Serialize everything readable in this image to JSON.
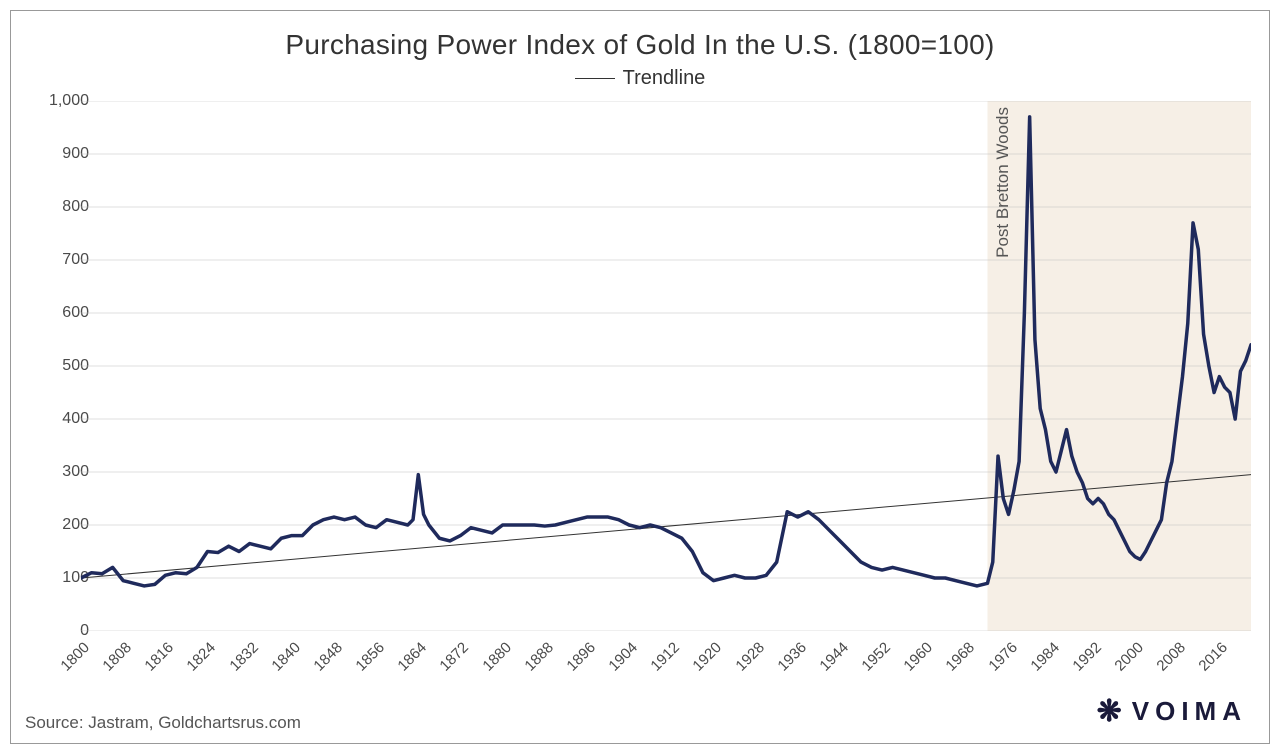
{
  "title": "Purchasing Power Index of Gold In the U.S. (1800=100)",
  "legend_label": "Trendline",
  "source": "Source: Jastram, Goldchartsrus.com",
  "logo_text": "VOIMA",
  "logo_mark": "❋",
  "chart": {
    "type": "line",
    "background_color": "#ffffff",
    "frame_border_color": "#999999",
    "grid_color": "#bfbfbf",
    "gridline_width": 0.5,
    "xlim": [
      1800,
      2022
    ],
    "ylim": [
      0,
      1000
    ],
    "ytick_step": 100,
    "yticks": [
      0,
      100,
      200,
      300,
      400,
      500,
      600,
      700,
      800,
      900,
      1000
    ],
    "ytick_labels": [
      "0",
      "100",
      "200",
      "300",
      "400",
      "500",
      "600",
      "700",
      "800",
      "900",
      "1,000"
    ],
    "xtick_step": 8,
    "xticks": [
      1800,
      1808,
      1816,
      1824,
      1832,
      1840,
      1848,
      1856,
      1864,
      1872,
      1880,
      1888,
      1896,
      1904,
      1912,
      1920,
      1928,
      1936,
      1944,
      1952,
      1960,
      1968,
      1976,
      1984,
      1992,
      2000,
      2008,
      2016
    ],
    "xtick_rotation_deg": -45,
    "axis_font_size": 16,
    "title_fontsize": 28,
    "legend_fontsize": 20,
    "series": {
      "color": "#1f2a5c",
      "line_width": 3.5,
      "points": [
        [
          1800,
          100
        ],
        [
          1802,
          110
        ],
        [
          1804,
          108
        ],
        [
          1806,
          120
        ],
        [
          1808,
          95
        ],
        [
          1810,
          90
        ],
        [
          1812,
          85
        ],
        [
          1814,
          88
        ],
        [
          1816,
          105
        ],
        [
          1818,
          110
        ],
        [
          1820,
          108
        ],
        [
          1822,
          120
        ],
        [
          1824,
          150
        ],
        [
          1826,
          148
        ],
        [
          1828,
          160
        ],
        [
          1830,
          150
        ],
        [
          1832,
          165
        ],
        [
          1834,
          160
        ],
        [
          1836,
          155
        ],
        [
          1838,
          175
        ],
        [
          1840,
          180
        ],
        [
          1842,
          180
        ],
        [
          1844,
          200
        ],
        [
          1846,
          210
        ],
        [
          1848,
          215
        ],
        [
          1850,
          210
        ],
        [
          1852,
          215
        ],
        [
          1854,
          200
        ],
        [
          1856,
          195
        ],
        [
          1858,
          210
        ],
        [
          1860,
          205
        ],
        [
          1862,
          200
        ],
        [
          1863,
          210
        ],
        [
          1864,
          295
        ],
        [
          1865,
          220
        ],
        [
          1866,
          200
        ],
        [
          1868,
          175
        ],
        [
          1870,
          170
        ],
        [
          1872,
          180
        ],
        [
          1874,
          195
        ],
        [
          1876,
          190
        ],
        [
          1878,
          185
        ],
        [
          1880,
          200
        ],
        [
          1882,
          200
        ],
        [
          1884,
          200
        ],
        [
          1886,
          200
        ],
        [
          1888,
          198
        ],
        [
          1890,
          200
        ],
        [
          1892,
          205
        ],
        [
          1894,
          210
        ],
        [
          1896,
          215
        ],
        [
          1898,
          215
        ],
        [
          1900,
          215
        ],
        [
          1902,
          210
        ],
        [
          1904,
          200
        ],
        [
          1906,
          195
        ],
        [
          1908,
          200
        ],
        [
          1910,
          195
        ],
        [
          1912,
          185
        ],
        [
          1914,
          175
        ],
        [
          1916,
          150
        ],
        [
          1918,
          110
        ],
        [
          1920,
          95
        ],
        [
          1922,
          100
        ],
        [
          1924,
          105
        ],
        [
          1926,
          100
        ],
        [
          1928,
          100
        ],
        [
          1930,
          105
        ],
        [
          1932,
          130
        ],
        [
          1934,
          225
        ],
        [
          1936,
          215
        ],
        [
          1938,
          225
        ],
        [
          1940,
          210
        ],
        [
          1942,
          190
        ],
        [
          1944,
          170
        ],
        [
          1946,
          150
        ],
        [
          1948,
          130
        ],
        [
          1950,
          120
        ],
        [
          1952,
          115
        ],
        [
          1954,
          120
        ],
        [
          1956,
          115
        ],
        [
          1958,
          110
        ],
        [
          1960,
          105
        ],
        [
          1962,
          100
        ],
        [
          1964,
          100
        ],
        [
          1966,
          95
        ],
        [
          1968,
          90
        ],
        [
          1970,
          85
        ],
        [
          1972,
          90
        ],
        [
          1973,
          130
        ],
        [
          1974,
          330
        ],
        [
          1975,
          250
        ],
        [
          1976,
          220
        ],
        [
          1977,
          265
        ],
        [
          1978,
          320
        ],
        [
          1979,
          600
        ],
        [
          1980,
          970
        ],
        [
          1981,
          550
        ],
        [
          1982,
          420
        ],
        [
          1983,
          380
        ],
        [
          1984,
          320
        ],
        [
          1985,
          300
        ],
        [
          1986,
          340
        ],
        [
          1987,
          380
        ],
        [
          1988,
          330
        ],
        [
          1989,
          300
        ],
        [
          1990,
          280
        ],
        [
          1991,
          250
        ],
        [
          1992,
          240
        ],
        [
          1993,
          250
        ],
        [
          1994,
          240
        ],
        [
          1995,
          220
        ],
        [
          1996,
          210
        ],
        [
          1997,
          190
        ],
        [
          1998,
          170
        ],
        [
          1999,
          150
        ],
        [
          2000,
          140
        ],
        [
          2001,
          135
        ],
        [
          2002,
          150
        ],
        [
          2003,
          170
        ],
        [
          2004,
          190
        ],
        [
          2005,
          210
        ],
        [
          2006,
          280
        ],
        [
          2007,
          320
        ],
        [
          2008,
          400
        ],
        [
          2009,
          480
        ],
        [
          2010,
          580
        ],
        [
          2011,
          770
        ],
        [
          2012,
          720
        ],
        [
          2013,
          560
        ],
        [
          2014,
          500
        ],
        [
          2015,
          450
        ],
        [
          2016,
          480
        ],
        [
          2017,
          460
        ],
        [
          2018,
          450
        ],
        [
          2019,
          400
        ],
        [
          2020,
          490
        ],
        [
          2021,
          510
        ],
        [
          2022,
          540
        ]
      ]
    },
    "trendline": {
      "color": "#333333",
      "line_width": 1,
      "start": [
        1800,
        100
      ],
      "end": [
        2022,
        295
      ]
    },
    "shaded_region": {
      "x_start": 1972,
      "x_end": 2022,
      "fill": "#f3e9de",
      "opacity": 0.75,
      "label": "Post Bretton Woods",
      "label_color": "#555555",
      "label_fontsize": 17
    }
  }
}
